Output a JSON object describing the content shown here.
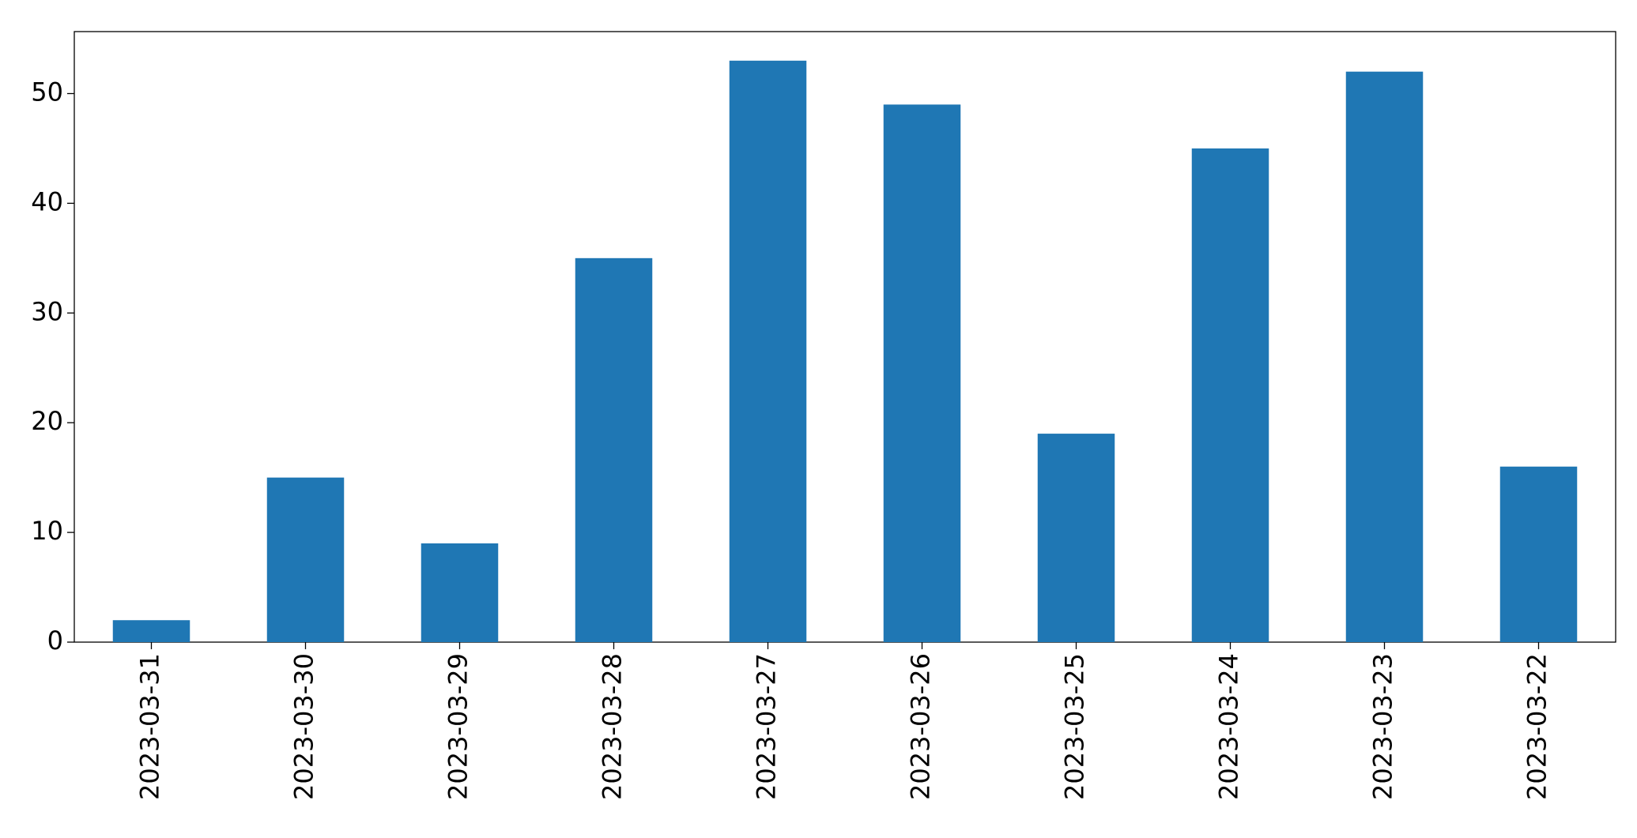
{
  "chart_data": {
    "type": "bar",
    "categories": [
      "2023-03-31",
      "2023-03-30",
      "2023-03-29",
      "2023-03-28",
      "2023-03-27",
      "2023-03-26",
      "2023-03-25",
      "2023-03-24",
      "2023-03-23",
      "2023-03-22"
    ],
    "values": [
      2,
      15,
      9,
      35,
      53,
      49,
      19,
      45,
      52,
      16
    ],
    "color": "#1f77b4",
    "ylim": [
      0,
      55.65
    ],
    "yticks": [
      0,
      10,
      20,
      30,
      40,
      50
    ],
    "grid": false
  }
}
